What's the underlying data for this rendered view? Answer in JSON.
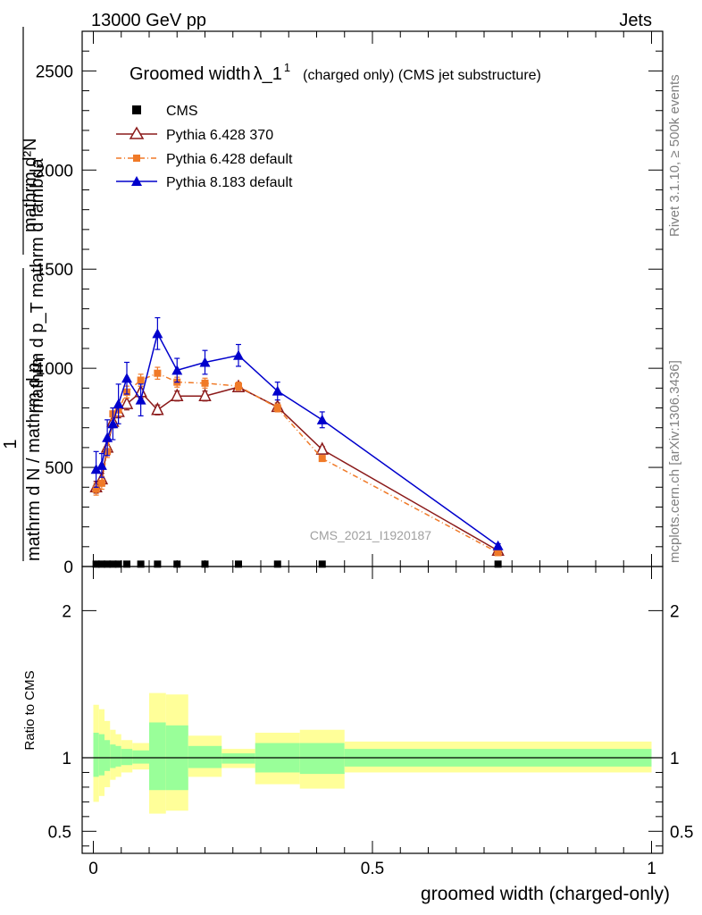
{
  "header": {
    "left": "13000 GeV pp",
    "right": "Jets"
  },
  "title": {
    "main": "Groomed width",
    "lambda": "λ_1",
    "lambda_sup": "1",
    "rest": "(charged only) (CMS jet substructure)"
  },
  "side_labels": {
    "rivet": "Rivet 3.1.10, ≥ 500k events",
    "mcplots": "mcplots.cern.ch [arXiv:1306.3436]"
  },
  "watermark": "CMS_2021_I1920187",
  "ylabel_top": {
    "numerator_one": "1",
    "numerator_frac": "mathrm d²N",
    "denominator_frac": "mathrm d p_T mathrm d lambda",
    "denominator_sub": "T",
    "left_text": "mathrm d N / mathrm d p",
    "left_text_sub": "T",
    "left_text_tail": "mathrm d N"
  },
  "ylabel_ratio": "Ratio to CMS",
  "xlabel": "groomed width (charged-only)",
  "colors": {
    "cms": "#000000",
    "py6_370": "#8b1a1a",
    "py6_default": "#f07a28",
    "py8_default": "#0000cc",
    "band_inner": "#99ff99",
    "band_outer": "#ffff99"
  },
  "chart_data": [
    {
      "type": "line",
      "panel": "main",
      "xlim": [
        -0.02,
        1.02
      ],
      "ylim": [
        0,
        2700
      ],
      "x_ticks": [
        0,
        0.5,
        1
      ],
      "y_ticks": [
        0,
        500,
        1000,
        1500,
        2000,
        2500
      ],
      "y_tick_labels": [
        "0",
        "500",
        "1000",
        "1500",
        "2000",
        "2500"
      ],
      "legend_position": "top-left",
      "series": [
        {
          "name": "CMS",
          "marker": "square",
          "x": [
            0.005,
            0.015,
            0.025,
            0.035,
            0.045,
            0.06,
            0.085,
            0.115,
            0.15,
            0.2,
            0.26,
            0.33,
            0.41,
            0.725
          ],
          "y": [
            3,
            3,
            3,
            3,
            3,
            3,
            3,
            3,
            3,
            3,
            3,
            3,
            3,
            3
          ]
        },
        {
          "name": "Pythia 6.428 370",
          "marker": "open-triangle",
          "x": [
            0.005,
            0.015,
            0.025,
            0.035,
            0.045,
            0.06,
            0.085,
            0.115,
            0.15,
            0.2,
            0.26,
            0.33,
            0.41,
            0.725
          ],
          "y": [
            400,
            440,
            600,
            730,
            780,
            820,
            880,
            790,
            860,
            860,
            905,
            805,
            590,
            80
          ],
          "err": [
            30,
            30,
            30,
            30,
            30,
            30,
            30,
            25,
            25,
            25,
            20,
            20,
            15,
            5
          ]
        },
        {
          "name": "Pythia 6.428 default",
          "marker": "filled-square",
          "x": [
            0.005,
            0.015,
            0.025,
            0.035,
            0.045,
            0.06,
            0.085,
            0.115,
            0.15,
            0.2,
            0.26,
            0.33,
            0.41,
            0.725
          ],
          "y": [
            390,
            420,
            580,
            770,
            790,
            880,
            940,
            975,
            930,
            925,
            910,
            800,
            545,
            70
          ],
          "err": [
            30,
            30,
            30,
            30,
            30,
            30,
            30,
            30,
            25,
            25,
            20,
            20,
            15,
            5
          ]
        },
        {
          "name": "Pythia 8.183 default",
          "marker": "filled-triangle",
          "x": [
            0.005,
            0.015,
            0.025,
            0.035,
            0.045,
            0.06,
            0.085,
            0.115,
            0.15,
            0.2,
            0.26,
            0.33,
            0.41,
            0.725
          ],
          "y": [
            490,
            510,
            650,
            720,
            820,
            950,
            840,
            1175,
            990,
            1030,
            1065,
            885,
            740,
            105
          ],
          "err": [
            90,
            60,
            90,
            80,
            100,
            80,
            80,
            80,
            60,
            60,
            55,
            45,
            40,
            10
          ]
        }
      ]
    },
    {
      "type": "area",
      "panel": "ratio",
      "xlim": [
        -0.02,
        1.02
      ],
      "ylim": [
        0.35,
        2.3
      ],
      "x_ticks": [
        0,
        0.5,
        1
      ],
      "x_tick_labels": [
        "0",
        "0.5",
        "1"
      ],
      "y_ticks": [
        0.5,
        1,
        2
      ],
      "y_tick_labels": [
        "0.5",
        "1",
        "2"
      ],
      "reference_line": 1,
      "bin_edges": [
        0,
        0.01,
        0.02,
        0.03,
        0.04,
        0.05,
        0.07,
        0.1,
        0.13,
        0.17,
        0.23,
        0.29,
        0.37,
        0.45,
        1.0
      ],
      "inner_low": [
        0.87,
        0.88,
        0.91,
        0.93,
        0.94,
        0.95,
        0.96,
        0.78,
        0.78,
        0.93,
        0.96,
        0.9,
        0.89,
        0.94
      ],
      "inner_high": [
        1.17,
        1.16,
        1.12,
        1.09,
        1.08,
        1.06,
        1.05,
        1.24,
        1.22,
        1.08,
        1.03,
        1.1,
        1.1,
        1.06
      ],
      "outer_low": [
        0.7,
        0.74,
        0.8,
        0.85,
        0.87,
        0.9,
        0.92,
        0.62,
        0.64,
        0.87,
        0.93,
        0.82,
        0.79,
        0.9
      ],
      "outer_high": [
        1.36,
        1.33,
        1.25,
        1.19,
        1.16,
        1.12,
        1.1,
        1.44,
        1.43,
        1.15,
        1.06,
        1.17,
        1.19,
        1.11
      ]
    }
  ]
}
